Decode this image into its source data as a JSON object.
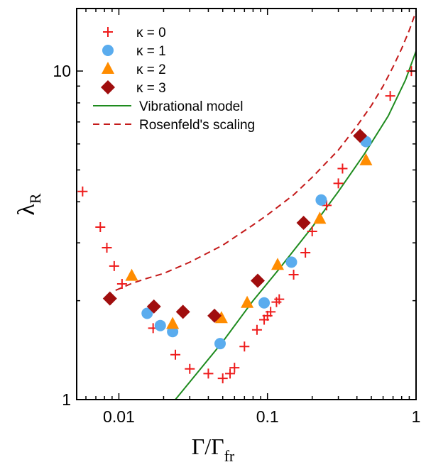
{
  "chart_data": {
    "type": "scatter",
    "title": "",
    "xlabel": {
      "main": "Γ/Γ",
      "sub": "fr"
    },
    "ylabel": {
      "main": "λ",
      "sub": "R"
    },
    "x_scale": "log",
    "y_scale": "log",
    "xlim": [
      0.0052,
      1.0
    ],
    "ylim": [
      1.0,
      15.5
    ],
    "x_ticks": [
      0.01,
      0.1,
      1
    ],
    "x_tick_labels": [
      "0.01",
      "0.1",
      "1"
    ],
    "y_ticks": [
      1,
      10
    ],
    "y_tick_labels": [
      "1",
      "10"
    ],
    "grid": false,
    "legend_position": "top-left",
    "series": [
      {
        "name": "κ = 0",
        "marker": "plus",
        "color": "#ee1c1c",
        "points": [
          [
            0.0057,
            4.3
          ],
          [
            0.0075,
            3.35
          ],
          [
            0.0083,
            2.9
          ],
          [
            0.0093,
            2.55
          ],
          [
            0.0105,
            2.25
          ],
          [
            0.017,
            1.65
          ],
          [
            0.024,
            1.37
          ],
          [
            0.03,
            1.24
          ],
          [
            0.04,
            1.2
          ],
          [
            0.05,
            1.16
          ],
          [
            0.056,
            1.2
          ],
          [
            0.06,
            1.25
          ],
          [
            0.07,
            1.45
          ],
          [
            0.085,
            1.63
          ],
          [
            0.095,
            1.75
          ],
          [
            0.1,
            1.8
          ],
          [
            0.105,
            1.85
          ],
          [
            0.115,
            1.98
          ],
          [
            0.12,
            2.02
          ],
          [
            0.15,
            2.4
          ],
          [
            0.18,
            2.8
          ],
          [
            0.2,
            3.25
          ],
          [
            0.25,
            3.9
          ],
          [
            0.3,
            4.55
          ],
          [
            0.32,
            5.05
          ],
          [
            0.67,
            8.4
          ],
          [
            0.93,
            10.0
          ]
        ]
      },
      {
        "name": "κ = 1",
        "marker": "circle",
        "color": "#5aacee",
        "points": [
          [
            0.0155,
            1.83
          ],
          [
            0.019,
            1.68
          ],
          [
            0.023,
            1.61
          ],
          [
            0.048,
            1.48
          ],
          [
            0.095,
            1.97
          ],
          [
            0.145,
            2.62
          ],
          [
            0.23,
            4.05
          ],
          [
            0.46,
            6.1
          ]
        ]
      },
      {
        "name": "κ = 2",
        "marker": "triangle",
        "color": "#ff8c00",
        "points": [
          [
            0.0122,
            2.38
          ],
          [
            0.023,
            1.7
          ],
          [
            0.049,
            1.77
          ],
          [
            0.073,
            1.97
          ],
          [
            0.117,
            2.57
          ],
          [
            0.225,
            3.55
          ],
          [
            0.46,
            5.35
          ]
        ]
      },
      {
        "name": "κ = 3",
        "marker": "diamond",
        "color": "#a00e0e",
        "points": [
          [
            0.0087,
            2.03
          ],
          [
            0.0172,
            1.92
          ],
          [
            0.027,
            1.85
          ],
          [
            0.044,
            1.8
          ],
          [
            0.086,
            2.3
          ],
          [
            0.175,
            3.45
          ],
          [
            0.42,
            6.35
          ]
        ]
      }
    ],
    "lines": [
      {
        "name": "Vibrational model",
        "style": "solid",
        "color": "#1e8b1e",
        "x": [
          0.024,
          0.05,
          0.08,
          0.12,
          0.2,
          0.3,
          0.45,
          0.65,
          0.85,
          1.0
        ],
        "y": [
          1.0,
          1.5,
          2.0,
          2.5,
          3.35,
          4.3,
          5.6,
          7.3,
          9.4,
          11.5
        ]
      },
      {
        "name": "Rosenfeld's scaling",
        "style": "dashed",
        "color": "#c41a1a",
        "x": [
          0.0095,
          0.012,
          0.015,
          0.02,
          0.03,
          0.05,
          0.08,
          0.1,
          0.15,
          0.2,
          0.3,
          0.4,
          0.5,
          0.6,
          0.7,
          0.8,
          0.9,
          1.0
        ],
        "y": [
          2.15,
          2.25,
          2.33,
          2.42,
          2.62,
          2.95,
          3.4,
          3.65,
          4.2,
          4.75,
          5.75,
          6.8,
          7.85,
          9.0,
          10.3,
          11.7,
          13.3,
          15.2
        ]
      }
    ]
  }
}
